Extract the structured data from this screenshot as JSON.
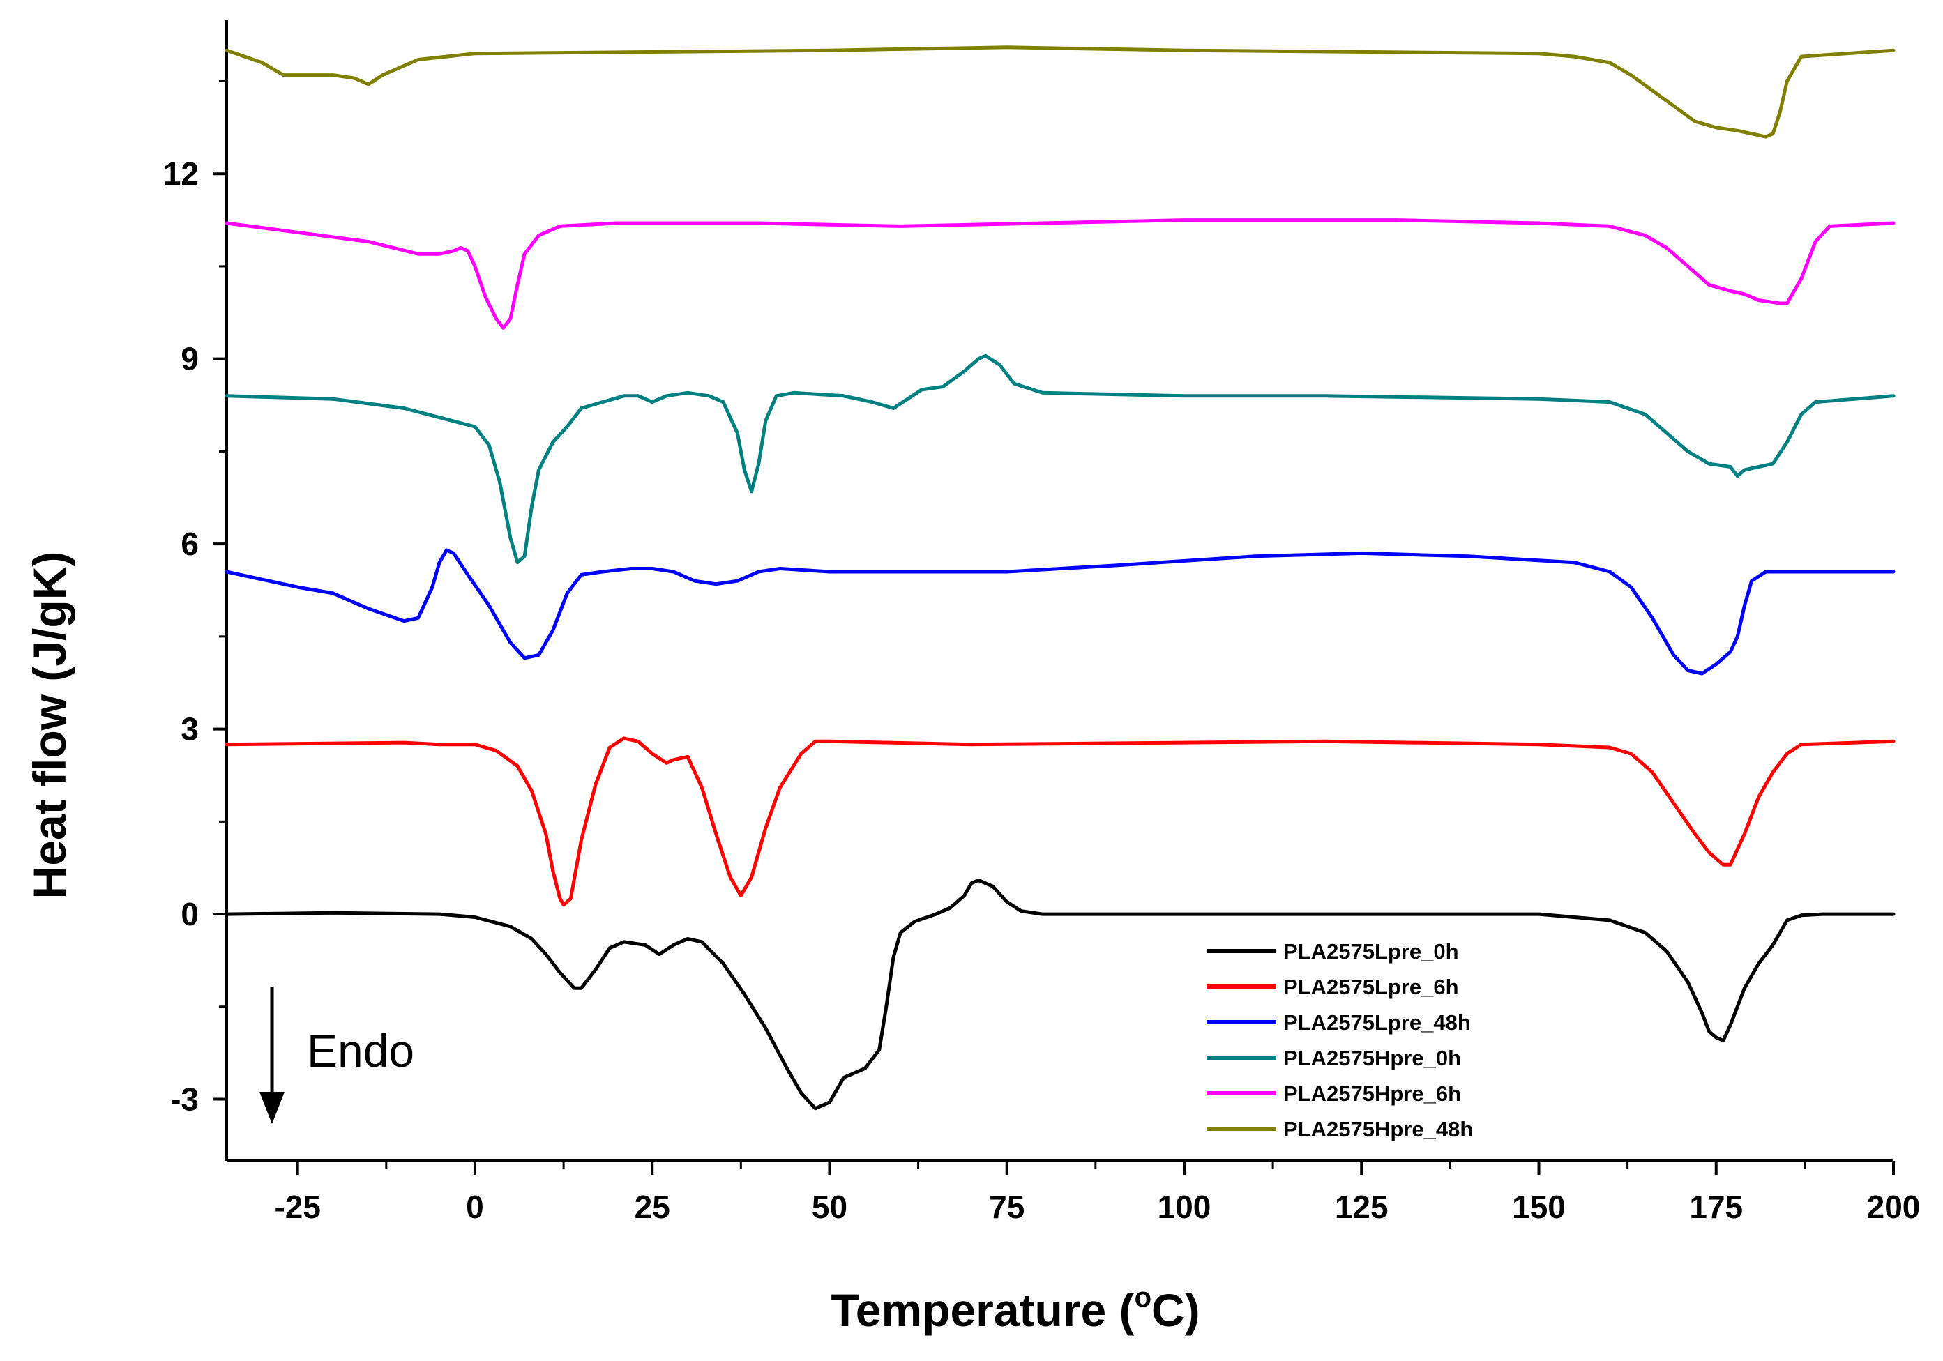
{
  "chart_data": {
    "type": "line",
    "title": "",
    "xlabel_main": "Temperature (",
    "xlabel_sup": "o",
    "xlabel_end": "C)",
    "ylabel": "Heat flow (J/gK)",
    "xlim": [
      -35,
      200
    ],
    "ylim": [
      -4,
      14.5
    ],
    "xticks": [
      -25,
      0,
      25,
      50,
      75,
      100,
      125,
      150,
      175,
      200
    ],
    "xtick_labels": [
      "-25",
      "0",
      "25",
      "50",
      "75",
      "100",
      "125",
      "150",
      "175",
      "200"
    ],
    "yticks": [
      -3,
      0,
      3,
      6,
      9,
      12
    ],
    "ytick_labels": [
      "-3",
      "0",
      "3",
      "6",
      "9",
      "12"
    ],
    "annotation": {
      "text": "Endo",
      "arrow": "down"
    },
    "legend_position": "bottom-right",
    "series": [
      {
        "name": "PLA2575Lpre_0h",
        "color": "#000000",
        "points": [
          [
            -35,
            0
          ],
          [
            -20,
            0.02
          ],
          [
            -5,
            0
          ],
          [
            0,
            -0.05
          ],
          [
            5,
            -0.2
          ],
          [
            8,
            -0.4
          ],
          [
            10,
            -0.65
          ],
          [
            12,
            -0.95
          ],
          [
            14,
            -1.2
          ],
          [
            15,
            -1.2
          ],
          [
            17,
            -0.9
          ],
          [
            19,
            -0.55
          ],
          [
            21,
            -0.45
          ],
          [
            24,
            -0.5
          ],
          [
            26,
            -0.65
          ],
          [
            28,
            -0.5
          ],
          [
            30,
            -0.4
          ],
          [
            32,
            -0.45
          ],
          [
            35,
            -0.8
          ],
          [
            38,
            -1.3
          ],
          [
            41,
            -1.85
          ],
          [
            44,
            -2.5
          ],
          [
            46,
            -2.9
          ],
          [
            48,
            -3.15
          ],
          [
            50,
            -3.05
          ],
          [
            52,
            -2.65
          ],
          [
            55,
            -2.5
          ],
          [
            57,
            -2.2
          ],
          [
            58,
            -1.5
          ],
          [
            59,
            -0.7
          ],
          [
            60,
            -0.3
          ],
          [
            62,
            -0.12
          ],
          [
            65,
            0
          ],
          [
            67,
            0.1
          ],
          [
            69,
            0.3
          ],
          [
            70,
            0.5
          ],
          [
            71,
            0.55
          ],
          [
            73,
            0.45
          ],
          [
            75,
            0.2
          ],
          [
            77,
            0.05
          ],
          [
            80,
            0
          ],
          [
            120,
            0
          ],
          [
            150,
            0
          ],
          [
            160,
            -0.1
          ],
          [
            165,
            -0.3
          ],
          [
            168,
            -0.6
          ],
          [
            171,
            -1.1
          ],
          [
            173,
            -1.6
          ],
          [
            174,
            -1.9
          ],
          [
            175,
            -2.0
          ],
          [
            176,
            -2.05
          ],
          [
            177,
            -1.8
          ],
          [
            179,
            -1.2
          ],
          [
            181,
            -0.8
          ],
          [
            183,
            -0.5
          ],
          [
            185,
            -0.1
          ],
          [
            187,
            -0.02
          ],
          [
            190,
            0
          ],
          [
            200,
            0
          ]
        ]
      },
      {
        "name": "PLA2575Lpre_6h",
        "color": "#ff0000",
        "points": [
          [
            -35,
            2.75
          ],
          [
            -10,
            2.78
          ],
          [
            -5,
            2.75
          ],
          [
            0,
            2.75
          ],
          [
            3,
            2.65
          ],
          [
            6,
            2.4
          ],
          [
            8,
            2.0
          ],
          [
            10,
            1.3
          ],
          [
            11,
            0.7
          ],
          [
            12,
            0.25
          ],
          [
            12.5,
            0.15
          ],
          [
            13.5,
            0.25
          ],
          [
            15,
            1.2
          ],
          [
            17,
            2.1
          ],
          [
            19,
            2.7
          ],
          [
            21,
            2.85
          ],
          [
            23,
            2.8
          ],
          [
            25,
            2.6
          ],
          [
            27,
            2.45
          ],
          [
            28,
            2.5
          ],
          [
            30,
            2.55
          ],
          [
            32,
            2.05
          ],
          [
            34,
            1.3
          ],
          [
            36,
            0.6
          ],
          [
            37.5,
            0.3
          ],
          [
            39,
            0.6
          ],
          [
            41,
            1.4
          ],
          [
            43,
            2.05
          ],
          [
            46,
            2.6
          ],
          [
            48,
            2.8
          ],
          [
            50,
            2.8
          ],
          [
            70,
            2.75
          ],
          [
            100,
            2.78
          ],
          [
            120,
            2.8
          ],
          [
            150,
            2.75
          ],
          [
            160,
            2.7
          ],
          [
            163,
            2.6
          ],
          [
            166,
            2.3
          ],
          [
            169,
            1.8
          ],
          [
            172,
            1.3
          ],
          [
            174,
            1.0
          ],
          [
            176,
            0.8
          ],
          [
            177,
            0.8
          ],
          [
            179,
            1.3
          ],
          [
            181,
            1.9
          ],
          [
            183,
            2.3
          ],
          [
            185,
            2.6
          ],
          [
            187,
            2.75
          ],
          [
            200,
            2.8
          ]
        ]
      },
      {
        "name": "PLA2575Lpre_48h",
        "color": "#0000ff",
        "points": [
          [
            -35,
            5.55
          ],
          [
            -25,
            5.3
          ],
          [
            -20,
            5.2
          ],
          [
            -15,
            4.95
          ],
          [
            -10,
            4.75
          ],
          [
            -8,
            4.8
          ],
          [
            -6,
            5.3
          ],
          [
            -5,
            5.7
          ],
          [
            -4,
            5.9
          ],
          [
            -3,
            5.85
          ],
          [
            -1,
            5.5
          ],
          [
            2,
            5.0
          ],
          [
            5,
            4.4
          ],
          [
            7,
            4.15
          ],
          [
            9,
            4.2
          ],
          [
            11,
            4.6
          ],
          [
            13,
            5.2
          ],
          [
            15,
            5.5
          ],
          [
            18,
            5.55
          ],
          [
            22,
            5.6
          ],
          [
            25,
            5.6
          ],
          [
            28,
            5.55
          ],
          [
            31,
            5.4
          ],
          [
            34,
            5.35
          ],
          [
            37,
            5.4
          ],
          [
            40,
            5.55
          ],
          [
            43,
            5.6
          ],
          [
            50,
            5.55
          ],
          [
            75,
            5.55
          ],
          [
            90,
            5.65
          ],
          [
            110,
            5.8
          ],
          [
            125,
            5.85
          ],
          [
            140,
            5.8
          ],
          [
            155,
            5.7
          ],
          [
            160,
            5.55
          ],
          [
            163,
            5.3
          ],
          [
            166,
            4.8
          ],
          [
            169,
            4.2
          ],
          [
            171,
            3.95
          ],
          [
            173,
            3.9
          ],
          [
            175,
            4.05
          ],
          [
            177,
            4.25
          ],
          [
            178,
            4.5
          ],
          [
            179,
            5.0
          ],
          [
            180,
            5.4
          ],
          [
            182,
            5.55
          ],
          [
            200,
            5.55
          ]
        ]
      },
      {
        "name": "PLA2575Hpre_0h",
        "color": "#008080",
        "points": [
          [
            -35,
            8.4
          ],
          [
            -20,
            8.35
          ],
          [
            -10,
            8.2
          ],
          [
            -5,
            8.05
          ],
          [
            0,
            7.9
          ],
          [
            2,
            7.6
          ],
          [
            3.5,
            7.0
          ],
          [
            5,
            6.1
          ],
          [
            6,
            5.7
          ],
          [
            7,
            5.8
          ],
          [
            8,
            6.6
          ],
          [
            9,
            7.2
          ],
          [
            11,
            7.65
          ],
          [
            13,
            7.9
          ],
          [
            15,
            8.2
          ],
          [
            18,
            8.3
          ],
          [
            21,
            8.4
          ],
          [
            23,
            8.4
          ],
          [
            25,
            8.3
          ],
          [
            27,
            8.4
          ],
          [
            30,
            8.45
          ],
          [
            33,
            8.4
          ],
          [
            35,
            8.3
          ],
          [
            37,
            7.8
          ],
          [
            38,
            7.2
          ],
          [
            39,
            6.85
          ],
          [
            40,
            7.3
          ],
          [
            41,
            8.0
          ],
          [
            42.5,
            8.4
          ],
          [
            45,
            8.45
          ],
          [
            52,
            8.4
          ],
          [
            56,
            8.3
          ],
          [
            59,
            8.2
          ],
          [
            61,
            8.35
          ],
          [
            63,
            8.5
          ],
          [
            66,
            8.55
          ],
          [
            69,
            8.8
          ],
          [
            71,
            9.0
          ],
          [
            72,
            9.05
          ],
          [
            74,
            8.9
          ],
          [
            76,
            8.6
          ],
          [
            80,
            8.45
          ],
          [
            100,
            8.4
          ],
          [
            120,
            8.4
          ],
          [
            150,
            8.35
          ],
          [
            160,
            8.3
          ],
          [
            165,
            8.1
          ],
          [
            168,
            7.8
          ],
          [
            171,
            7.5
          ],
          [
            174,
            7.3
          ],
          [
            177,
            7.25
          ],
          [
            178,
            7.1
          ],
          [
            179,
            7.2
          ],
          [
            181,
            7.25
          ],
          [
            183,
            7.3
          ],
          [
            185,
            7.65
          ],
          [
            187,
            8.1
          ],
          [
            189,
            8.3
          ],
          [
            200,
            8.4
          ]
        ]
      },
      {
        "name": "PLA2575Hpre_6h",
        "color": "#ff00ff",
        "points": [
          [
            -35,
            11.2
          ],
          [
            -25,
            11.05
          ],
          [
            -15,
            10.9
          ],
          [
            -8,
            10.7
          ],
          [
            -5,
            10.7
          ],
          [
            -3,
            10.75
          ],
          [
            -2,
            10.8
          ],
          [
            -1,
            10.75
          ],
          [
            0,
            10.5
          ],
          [
            1.5,
            10.0
          ],
          [
            3,
            9.65
          ],
          [
            4,
            9.5
          ],
          [
            5,
            9.65
          ],
          [
            6,
            10.2
          ],
          [
            7,
            10.7
          ],
          [
            9,
            11.0
          ],
          [
            12,
            11.15
          ],
          [
            20,
            11.2
          ],
          [
            40,
            11.2
          ],
          [
            60,
            11.15
          ],
          [
            80,
            11.2
          ],
          [
            100,
            11.25
          ],
          [
            130,
            11.25
          ],
          [
            150,
            11.2
          ],
          [
            160,
            11.15
          ],
          [
            165,
            11.0
          ],
          [
            168,
            10.8
          ],
          [
            171,
            10.5
          ],
          [
            174,
            10.2
          ],
          [
            177,
            10.1
          ],
          [
            179,
            10.05
          ],
          [
            181,
            9.95
          ],
          [
            184,
            9.9
          ],
          [
            185,
            9.9
          ],
          [
            187,
            10.3
          ],
          [
            189,
            10.9
          ],
          [
            191,
            11.15
          ],
          [
            200,
            11.2
          ]
        ]
      },
      {
        "name": "PLA2575Hpre_48h",
        "color": "#808000",
        "points": [
          [
            -35,
            14.0
          ],
          [
            -30,
            13.8
          ],
          [
            -27,
            13.6
          ],
          [
            -20,
            13.6
          ],
          [
            -17,
            13.55
          ],
          [
            -15,
            13.45
          ],
          [
            -13,
            13.6
          ],
          [
            -8,
            13.85
          ],
          [
            0,
            13.95
          ],
          [
            50,
            14.0
          ],
          [
            75,
            14.05
          ],
          [
            100,
            14.0
          ],
          [
            150,
            13.95
          ],
          [
            155,
            13.9
          ],
          [
            160,
            13.8
          ],
          [
            163,
            13.6
          ],
          [
            166,
            13.35
          ],
          [
            169,
            13.1
          ],
          [
            172,
            12.85
          ],
          [
            175,
            12.75
          ],
          [
            178,
            12.7
          ],
          [
            180,
            12.65
          ],
          [
            182,
            12.6
          ],
          [
            183,
            12.65
          ],
          [
            184,
            13.0
          ],
          [
            185,
            13.5
          ],
          [
            187,
            13.9
          ],
          [
            200,
            14.0
          ]
        ]
      }
    ]
  }
}
